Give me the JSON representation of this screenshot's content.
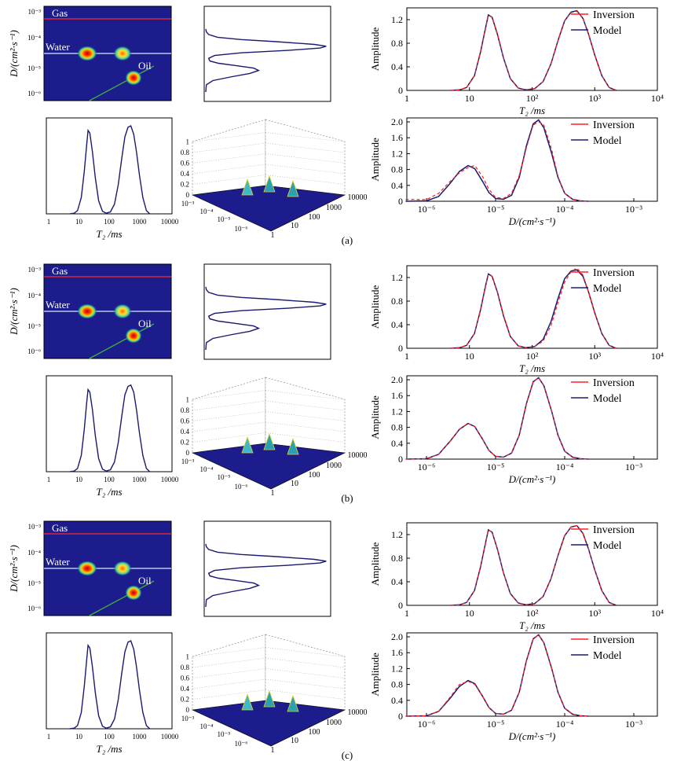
{
  "chart_data": [
    {
      "panel": "a",
      "type": "line",
      "t2_axis": {
        "ticks": [
          "1",
          "10",
          "100",
          "1000",
          "10000"
        ],
        "label": "T₂ /ms"
      },
      "d_axis": {
        "label": "D/(cm²·s⁻¹)",
        "ticks": [
          "10⁻³",
          "10⁻⁴",
          "10⁻⁵",
          "10⁻⁶"
        ]
      },
      "map_labels": [
        "Gas",
        "Water",
        "Oil"
      ],
      "surface_z_ticks": [
        "0",
        "0.2",
        "0.4",
        "0.6",
        "0.8",
        "1"
      ],
      "surface_x_ticks": [
        "1",
        "10",
        "100",
        "1000",
        "10000"
      ],
      "surface_y_ticks": [
        "10⁻³",
        "10⁻⁴",
        "10⁻⁵",
        "10⁻⁶"
      ],
      "t2_plot": {
        "ylabel": "Amplitude",
        "xlabel": "T₂ /ms",
        "xticks": [
          "1",
          "10",
          "10²",
          "10³",
          "10⁴"
        ],
        "yticks": [
          "0",
          "0.4",
          "0.8",
          "1.2"
        ],
        "ylim": [
          0,
          1.4
        ],
        "legend": [
          "Inversion",
          "Model"
        ],
        "series": [
          {
            "name": "Model",
            "x": [
              5,
              7,
              9,
              12,
              15,
              18,
              20,
              23,
              28,
              35,
              45,
              60,
              80,
              110,
              150,
              200,
              260,
              330,
              420,
              520,
              650,
              800,
              1000,
              1300,
              1700,
              2200
            ],
            "y": [
              0,
              0.01,
              0.05,
              0.25,
              0.65,
              1.05,
              1.28,
              1.24,
              0.95,
              0.55,
              0.2,
              0.04,
              0.01,
              0.03,
              0.15,
              0.45,
              0.85,
              1.18,
              1.33,
              1.35,
              1.22,
              0.95,
              0.6,
              0.25,
              0.05,
              0
            ]
          },
          {
            "name": "Inversion",
            "x": [
              5,
              7,
              9,
              12,
              15,
              18,
              20,
              23,
              28,
              35,
              45,
              60,
              80,
              110,
              150,
              200,
              260,
              330,
              420,
              520,
              650,
              800,
              1000,
              1300,
              1700,
              2200
            ],
            "y": [
              0,
              0.01,
              0.05,
              0.25,
              0.64,
              1.04,
              1.27,
              1.24,
              0.96,
              0.56,
              0.2,
              0.04,
              0.01,
              0.03,
              0.15,
              0.45,
              0.85,
              1.18,
              1.32,
              1.34,
              1.22,
              0.95,
              0.6,
              0.25,
              0.05,
              0
            ]
          }
        ]
      },
      "d_plot": {
        "ylabel": "Amplitude",
        "xlabel": "D/(cm²·s⁻¹)",
        "xticks": [
          "10⁻⁶",
          "10⁻⁵",
          "10⁻⁴",
          "10⁻³"
        ],
        "yticks": [
          "0",
          "0.4",
          "0.8",
          "1.2",
          "1.6",
          "2.0"
        ],
        "ylim": [
          0,
          2.1
        ],
        "legend": [
          "Inversion",
          "Model"
        ],
        "series": [
          {
            "name": "Model",
            "x": [
              5e-07,
              1e-06,
              1.5e-06,
              2.2e-06,
              3e-06,
              4e-06,
              5e-06,
              6.5e-06,
              8e-06,
              1e-05,
              1.3e-05,
              1.7e-05,
              2.2e-05,
              2.8e-05,
              3.5e-05,
              4.2e-05,
              5e-05,
              6.5e-05,
              8e-05,
              0.0001,
              0.00013,
              0.00017,
              0.00022
            ],
            "y": [
              0,
              0.01,
              0.12,
              0.45,
              0.75,
              0.9,
              0.82,
              0.5,
              0.22,
              0.07,
              0.05,
              0.15,
              0.6,
              1.4,
              1.95,
              2.05,
              1.85,
              1.2,
              0.6,
              0.2,
              0.05,
              0.01,
              0
            ]
          },
          {
            "name": "Inversion",
            "x": [
              5e-07,
              1e-06,
              1.5e-06,
              2.2e-06,
              3e-06,
              4e-06,
              5e-06,
              6.5e-06,
              8e-06,
              1e-05,
              1.3e-05,
              1.7e-05,
              2.2e-05,
              2.8e-05,
              3.5e-05,
              4.2e-05,
              5e-05,
              6.5e-05,
              8e-05,
              0.0001,
              0.00013,
              0.00017,
              0.00022
            ],
            "y": [
              0.05,
              0.04,
              0.2,
              0.5,
              0.72,
              0.85,
              0.9,
              0.62,
              0.3,
              0.1,
              0.07,
              0.2,
              0.65,
              1.35,
              1.92,
              2.0,
              1.92,
              1.3,
              0.62,
              0.2,
              0.05,
              0.01,
              0
            ]
          }
        ]
      },
      "label": "(a)"
    },
    {
      "panel": "b",
      "type": "line",
      "t2_axis": {
        "ticks": [
          "1",
          "10",
          "100",
          "1000",
          "10000"
        ],
        "label": "T₂ /ms"
      },
      "d_axis": {
        "label": "D/(cm²·s⁻¹)",
        "ticks": [
          "10⁻³",
          "10⁻⁴",
          "10⁻⁵",
          "10⁻⁶"
        ]
      },
      "map_labels": [
        "Gas",
        "Water",
        "Oil"
      ],
      "surface_z_ticks": [
        "0",
        "0.2",
        "0.4",
        "0.6",
        "0.8",
        "1"
      ],
      "surface_x_ticks": [
        "1",
        "10",
        "100",
        "1000",
        "10000"
      ],
      "surface_y_ticks": [
        "10⁻³",
        "10⁻⁴",
        "10⁻⁵",
        "10⁻⁶"
      ],
      "t2_plot": {
        "ylabel": "Amplitude",
        "xlabel": "T₂ /ms",
        "xticks": [
          "1",
          "10",
          "10²",
          "10³",
          "10⁴"
        ],
        "yticks": [
          "0",
          "0.4",
          "0.8",
          "1.2"
        ],
        "ylim": [
          0,
          1.4
        ],
        "legend": [
          "Inversion",
          "Model"
        ],
        "series": [
          {
            "name": "Model",
            "x": [
              5,
              7,
              9,
              12,
              15,
              18,
              20,
              23,
              28,
              35,
              45,
              60,
              80,
              110,
              150,
              200,
              260,
              330,
              420,
              520,
              650,
              800,
              1000,
              1300,
              1700,
              2200
            ],
            "y": [
              0,
              0.01,
              0.05,
              0.25,
              0.65,
              1.05,
              1.26,
              1.22,
              0.95,
              0.55,
              0.2,
              0.04,
              0.01,
              0.03,
              0.15,
              0.45,
              0.85,
              1.18,
              1.31,
              1.33,
              1.22,
              0.95,
              0.6,
              0.25,
              0.05,
              0
            ]
          },
          {
            "name": "Inversion",
            "x": [
              5,
              7,
              9,
              12,
              15,
              18,
              20,
              23,
              28,
              35,
              45,
              60,
              80,
              110,
              150,
              200,
              260,
              330,
              420,
              520,
              650,
              800,
              1000,
              1300,
              1700,
              2200
            ],
            "y": [
              0,
              0.01,
              0.05,
              0.25,
              0.64,
              1.04,
              1.25,
              1.22,
              0.96,
              0.56,
              0.2,
              0.04,
              0.01,
              0.03,
              0.12,
              0.38,
              0.78,
              1.12,
              1.3,
              1.36,
              1.24,
              0.95,
              0.6,
              0.25,
              0.05,
              0
            ]
          }
        ]
      },
      "d_plot": {
        "ylabel": "Amplitude",
        "xlabel": "D/(cm²·s⁻¹)",
        "xticks": [
          "10⁻⁶",
          "10⁻⁵",
          "10⁻⁴",
          "10⁻³"
        ],
        "yticks": [
          "0",
          "0.4",
          "0.8",
          "1.2",
          "1.6",
          "2.0"
        ],
        "ylim": [
          0,
          2.1
        ],
        "legend": [
          "Inversion",
          "Model"
        ],
        "series": [
          {
            "name": "Model",
            "x": [
              5e-07,
              1e-06,
              1.5e-06,
              2.2e-06,
              3e-06,
              4e-06,
              5e-06,
              6.5e-06,
              8e-06,
              1e-05,
              1.3e-05,
              1.7e-05,
              2.2e-05,
              2.8e-05,
              3.5e-05,
              4.2e-05,
              5e-05,
              6.5e-05,
              8e-05,
              0.0001,
              0.00013,
              0.00017,
              0.00022
            ],
            "y": [
              0,
              0.01,
              0.12,
              0.45,
              0.75,
              0.9,
              0.82,
              0.5,
              0.22,
              0.07,
              0.05,
              0.15,
              0.6,
              1.4,
              1.95,
              2.05,
              1.85,
              1.2,
              0.6,
              0.2,
              0.05,
              0.01,
              0
            ]
          },
          {
            "name": "Inversion",
            "x": [
              5e-07,
              1e-06,
              1.5e-06,
              2.2e-06,
              3e-06,
              4e-06,
              5e-06,
              6.5e-06,
              8e-06,
              1e-05,
              1.3e-05,
              1.7e-05,
              2.2e-05,
              2.8e-05,
              3.5e-05,
              4.2e-05,
              5e-05,
              6.5e-05,
              8e-05,
              0.0001,
              0.00013,
              0.00017,
              0.00022
            ],
            "y": [
              0,
              0.01,
              0.12,
              0.45,
              0.75,
              0.9,
              0.82,
              0.5,
              0.22,
              0.07,
              0.05,
              0.15,
              0.6,
              1.4,
              1.95,
              2.05,
              1.85,
              1.2,
              0.6,
              0.2,
              0.05,
              0.01,
              0
            ]
          }
        ]
      },
      "label": "(b)"
    },
    {
      "panel": "c",
      "type": "line",
      "t2_axis": {
        "ticks": [
          "1",
          "10",
          "100",
          "1000",
          "10000"
        ],
        "label": "T₂ /ms"
      },
      "d_axis": {
        "label": "D/(cm²·s⁻¹)",
        "ticks": [
          "10⁻³",
          "10⁻⁴",
          "10⁻⁵",
          "10⁻⁶"
        ]
      },
      "map_labels": [
        "Gas",
        "Water",
        "Oil"
      ],
      "surface_z_ticks": [
        "0",
        "0.2",
        "0.4",
        "0.6",
        "0.8",
        "1"
      ],
      "surface_x_ticks": [
        "1",
        "10",
        "100",
        "1000",
        "10000"
      ],
      "surface_y_ticks": [
        "10⁻³",
        "10⁻⁴",
        "10⁻⁵",
        "10⁻⁶"
      ],
      "t2_plot": {
        "ylabel": "Amplitude",
        "xlabel": "T₂ /ms",
        "xticks": [
          "1",
          "10",
          "10²",
          "10³",
          "10⁴"
        ],
        "yticks": [
          "0",
          "0.4",
          "0.8",
          "1.2"
        ],
        "ylim": [
          0,
          1.4
        ],
        "legend": [
          "Inversion",
          "Model"
        ],
        "series": [
          {
            "name": "Model",
            "x": [
              5,
              7,
              9,
              12,
              15,
              18,
              20,
              23,
              28,
              35,
              45,
              60,
              80,
              110,
              150,
              200,
              260,
              330,
              420,
              520,
              650,
              800,
              1000,
              1300,
              1700,
              2200
            ],
            "y": [
              0,
              0.01,
              0.05,
              0.25,
              0.65,
              1.05,
              1.28,
              1.24,
              0.95,
              0.55,
              0.2,
              0.04,
              0.01,
              0.03,
              0.15,
              0.45,
              0.85,
              1.18,
              1.33,
              1.35,
              1.22,
              0.95,
              0.6,
              0.25,
              0.05,
              0
            ]
          },
          {
            "name": "Inversion",
            "x": [
              5,
              7,
              9,
              12,
              15,
              18,
              20,
              23,
              28,
              35,
              45,
              60,
              80,
              110,
              150,
              200,
              260,
              330,
              420,
              520,
              650,
              800,
              1000,
              1300,
              1700,
              2200
            ],
            "y": [
              0,
              0.01,
              0.05,
              0.25,
              0.65,
              1.05,
              1.28,
              1.24,
              0.95,
              0.55,
              0.2,
              0.04,
              0.01,
              0.03,
              0.15,
              0.45,
              0.85,
              1.18,
              1.33,
              1.35,
              1.22,
              0.95,
              0.6,
              0.25,
              0.05,
              0
            ]
          }
        ]
      },
      "d_plot": {
        "ylabel": "Amplitude",
        "xlabel": "D/(cm²·s⁻¹)",
        "xticks": [
          "10⁻⁶",
          "10⁻⁵",
          "10⁻⁴",
          "10⁻³"
        ],
        "yticks": [
          "0",
          "0.4",
          "0.8",
          "1.2",
          "1.6",
          "2.0"
        ],
        "ylim": [
          0,
          2.1
        ],
        "legend": [
          "Inversion",
          "Model"
        ],
        "series": [
          {
            "name": "Model",
            "x": [
              5e-07,
              1e-06,
              1.5e-06,
              2.2e-06,
              3e-06,
              4e-06,
              5e-06,
              6.5e-06,
              8e-06,
              1e-05,
              1.3e-05,
              1.7e-05,
              2.2e-05,
              2.8e-05,
              3.5e-05,
              4.2e-05,
              5e-05,
              6.5e-05,
              8e-05,
              0.0001,
              0.00013,
              0.00017,
              0.00022
            ],
            "y": [
              0,
              0.01,
              0.12,
              0.45,
              0.75,
              0.9,
              0.82,
              0.5,
              0.22,
              0.07,
              0.05,
              0.15,
              0.6,
              1.4,
              1.95,
              2.05,
              1.85,
              1.2,
              0.6,
              0.2,
              0.05,
              0.01,
              0
            ]
          },
          {
            "name": "Inversion",
            "x": [
              5e-07,
              1e-06,
              1.5e-06,
              2.2e-06,
              3e-06,
              4e-06,
              5e-06,
              6.5e-06,
              8e-06,
              1e-05,
              1.3e-05,
              1.7e-05,
              2.2e-05,
              2.8e-05,
              3.5e-05,
              4.2e-05,
              5e-05,
              6.5e-05,
              8e-05,
              0.0001,
              0.00013,
              0.00017,
              0.00022
            ],
            "y": [
              0,
              0.01,
              0.12,
              0.48,
              0.8,
              0.88,
              0.8,
              0.5,
              0.22,
              0.07,
              0.05,
              0.15,
              0.6,
              1.4,
              1.95,
              2.05,
              1.85,
              1.2,
              0.6,
              0.2,
              0.05,
              0.01,
              0
            ]
          }
        ]
      },
      "label": "(c)"
    }
  ],
  "colors": {
    "model": "#1a1a6e",
    "inversion": "#ff2020",
    "map_bg": "#1c1c8c",
    "gas": "#ff2a2a",
    "water": "#d8e8ff",
    "oil": "#40b040"
  }
}
